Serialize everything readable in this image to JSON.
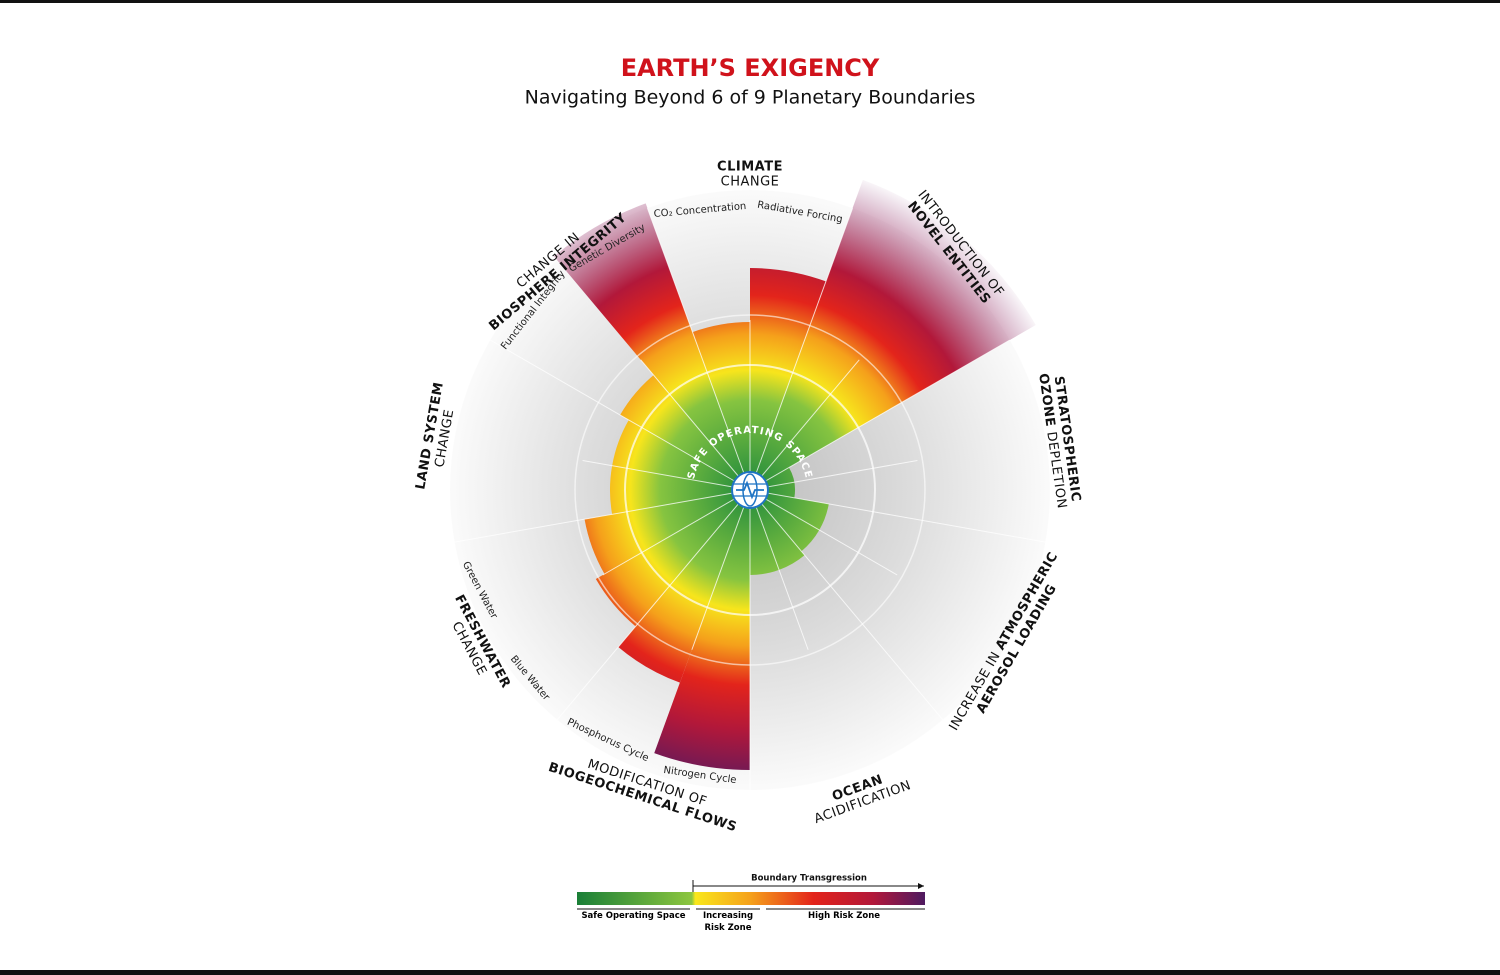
{
  "header": {
    "title": "EARTH’S EXIGENCY",
    "subtitle": "Navigating Beyond 6 of 9 Planetary Boundaries"
  },
  "center_label": "SAFE OPERATING SPACE",
  "boundaries": [
    {
      "lines": [
        [
          {
            "text": "CLIMATE",
            "bold": true
          }
        ],
        [
          {
            "text": "CHANGE",
            "bold": false
          }
        ]
      ]
    },
    {
      "lines": [
        [
          {
            "text": "INTRODUCTION OF",
            "bold": false
          }
        ],
        [
          {
            "text": "NOVEL ENTITIES",
            "bold": true
          }
        ]
      ]
    },
    {
      "lines": [
        [
          {
            "text": "STRATOSPHERIC",
            "bold": true
          }
        ],
        [
          {
            "text": "OZONE",
            "bold": true
          },
          {
            "text": "DEPLETION",
            "bold": false
          }
        ]
      ]
    },
    {
      "lines": [
        [
          {
            "text": "INCREASE IN",
            "bold": false
          },
          {
            "text": "ATMOSPHERIC",
            "bold": true
          }
        ],
        [
          {
            "text": "AEROSOL LOADING",
            "bold": true
          }
        ]
      ]
    },
    {
      "lines": [
        [
          {
            "text": "OCEAN",
            "bold": true
          }
        ],
        [
          {
            "text": "ACIDIFICATION",
            "bold": false
          }
        ]
      ]
    },
    {
      "lines": [
        [
          {
            "text": "MODIFICATION OF",
            "bold": false
          }
        ],
        [
          {
            "text": "BIOGEOCHEMICAL FLOWS",
            "bold": true
          }
        ]
      ]
    },
    {
      "lines": [
        [
          {
            "text": "FRESHWATER",
            "bold": true
          }
        ],
        [
          {
            "text": "CHANGE",
            "bold": false
          }
        ]
      ]
    },
    {
      "lines": [
        [
          {
            "text": "LAND SYSTEM",
            "bold": true
          }
        ],
        [
          {
            "text": "CHANGE",
            "bold": false
          }
        ]
      ]
    },
    {
      "lines": [
        [
          {
            "text": "CHANGE IN",
            "bold": false
          }
        ],
        [
          {
            "text": "BIOSPHERE INTEGRITY",
            "bold": true
          }
        ]
      ]
    }
  ],
  "sub_labels": [
    "CO₂ Concentration",
    "Radiative Forcing",
    "Genetic Diversity",
    "Functional Integrity",
    "Green Water",
    "Blue Water",
    "Phosphorus Cycle",
    "Nitrogen Cycle"
  ],
  "legend": {
    "arrow_label": "Boundary Transgression",
    "zones": [
      "Safe Operating Space",
      "Increasing Risk Zone",
      "High Risk Zone"
    ]
  }
}
